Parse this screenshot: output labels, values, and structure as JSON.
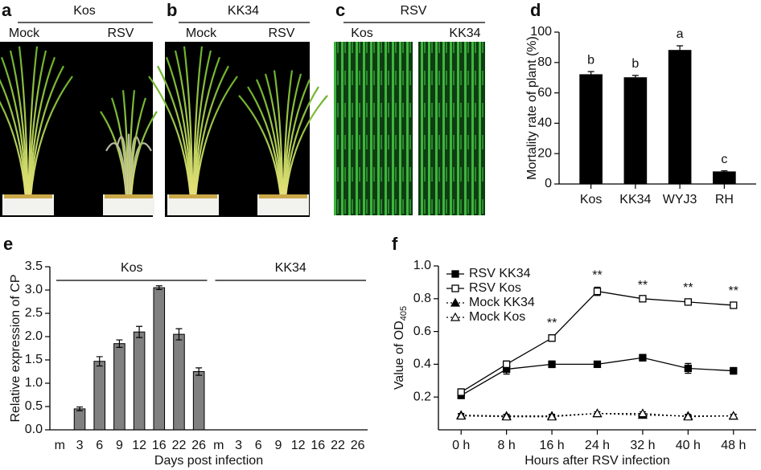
{
  "photo_panels": [
    {
      "label": "a",
      "title": "Kos",
      "columns": [
        "Mock",
        "RSV"
      ]
    },
    {
      "label": "b",
      "title": "KK34",
      "columns": [
        "Mock",
        "RSV"
      ]
    },
    {
      "label": "c",
      "title": "RSV",
      "columns": [
        "Kos",
        "KK34"
      ]
    }
  ],
  "chart_data": [
    {
      "type": "bar",
      "panel_label": "d",
      "ylabel": "Mortality rate of plant (%)",
      "categories": [
        "Kos",
        "KK34",
        "WYJ3",
        "RH"
      ],
      "values": [
        72,
        70,
        88,
        8
      ],
      "errors": [
        2,
        1.5,
        3,
        0.7
      ],
      "letters": [
        "b",
        "b",
        "a",
        "c"
      ],
      "color": "#000000",
      "ylim": [
        0,
        100
      ],
      "yticks": [
        0,
        20,
        40,
        60,
        80,
        100
      ],
      "grid": false
    },
    {
      "type": "bar",
      "panel_label": "e",
      "ylabel": "Relative expression of CP",
      "xlabel": "Days post infection",
      "groups": [
        "Kos",
        "KK34"
      ],
      "categories": [
        "m",
        "3",
        "6",
        "9",
        "12",
        "16",
        "22",
        "26",
        "m",
        "3",
        "6",
        "9",
        "12",
        "16",
        "22",
        "26"
      ],
      "values": [
        0,
        0.45,
        1.47,
        1.85,
        2.1,
        3.05,
        2.05,
        1.25,
        0,
        0,
        0,
        0,
        0,
        0,
        0,
        0
      ],
      "errors": [
        0,
        0.04,
        0.1,
        0.08,
        0.12,
        0.04,
        0.12,
        0.08,
        0,
        0,
        0,
        0,
        0,
        0,
        0,
        0
      ],
      "color": "#808080",
      "ylim": [
        0,
        3.5
      ],
      "yticks": [
        {
          "value": 0,
          "label": "0.0"
        },
        0.5,
        {
          "value": 1,
          "label": "1.0"
        },
        1.5,
        {
          "value": 2,
          "label": "2.0"
        },
        2.5,
        {
          "value": 3,
          "label": "3.0"
        },
        3.5
      ],
      "grid": false
    },
    {
      "type": "line",
      "panel_label": "f",
      "ylabel": "Value of OD",
      "ylabel_subscript": "405",
      "xlabel": "Hours after RSV infection",
      "categories": [
        "0 h",
        "8 h",
        "16 h",
        "24 h",
        "32 h",
        "40 h",
        "48 h"
      ],
      "series": [
        {
          "name": "RSV KK34",
          "color": "#000000",
          "marker": "square",
          "filled": true,
          "linestyle": "solid",
          "values": [
            0.21,
            0.37,
            0.4,
            0.4,
            0.44,
            0.375,
            0.36
          ],
          "errors": [
            0.015,
            0.03,
            0.02,
            0.015,
            0.02,
            0.03,
            0.02
          ]
        },
        {
          "name": "RSV Kos",
          "color": "#000000",
          "marker": "square",
          "filled": false,
          "linestyle": "solid",
          "values": [
            0.23,
            0.4,
            0.56,
            0.845,
            0.8,
            0.78,
            0.76
          ],
          "errors": [
            0.02,
            0.02,
            0.02,
            0.025,
            0.01,
            0.015,
            0.015
          ]
        },
        {
          "name": "Mock KK34",
          "color": "#000000",
          "marker": "triangle",
          "filled": true,
          "linestyle": "dotted",
          "values": [
            0.09,
            0.085,
            0.085,
            0.1,
            0.09,
            0.085,
            0.085
          ],
          "errors": [
            0.01,
            0.01,
            0.01,
            0.01,
            0.01,
            0.01,
            0.01
          ]
        },
        {
          "name": "Mock Kos",
          "color": "#000000",
          "marker": "triangle",
          "filled": false,
          "linestyle": "dotted",
          "values": [
            0.085,
            0.08,
            0.08,
            0.1,
            0.1,
            0.08,
            0.085
          ],
          "errors": [
            0.01,
            0.01,
            0.01,
            0.01,
            0.01,
            0.01,
            0.01
          ]
        }
      ],
      "annotations": [
        {
          "text": "**",
          "x": "16 h"
        },
        {
          "text": "**",
          "x": "24 h"
        },
        {
          "text": "**",
          "x": "32 h"
        },
        {
          "text": "**",
          "x": "40 h"
        },
        {
          "text": "**",
          "x": "48 h"
        }
      ],
      "legend": "upper left",
      "ylim": [
        0,
        1
      ],
      "yticks": [
        0.2,
        0.4,
        0.6,
        0.8,
        {
          "value": 1,
          "label": "1.0"
        }
      ],
      "grid": false
    }
  ]
}
